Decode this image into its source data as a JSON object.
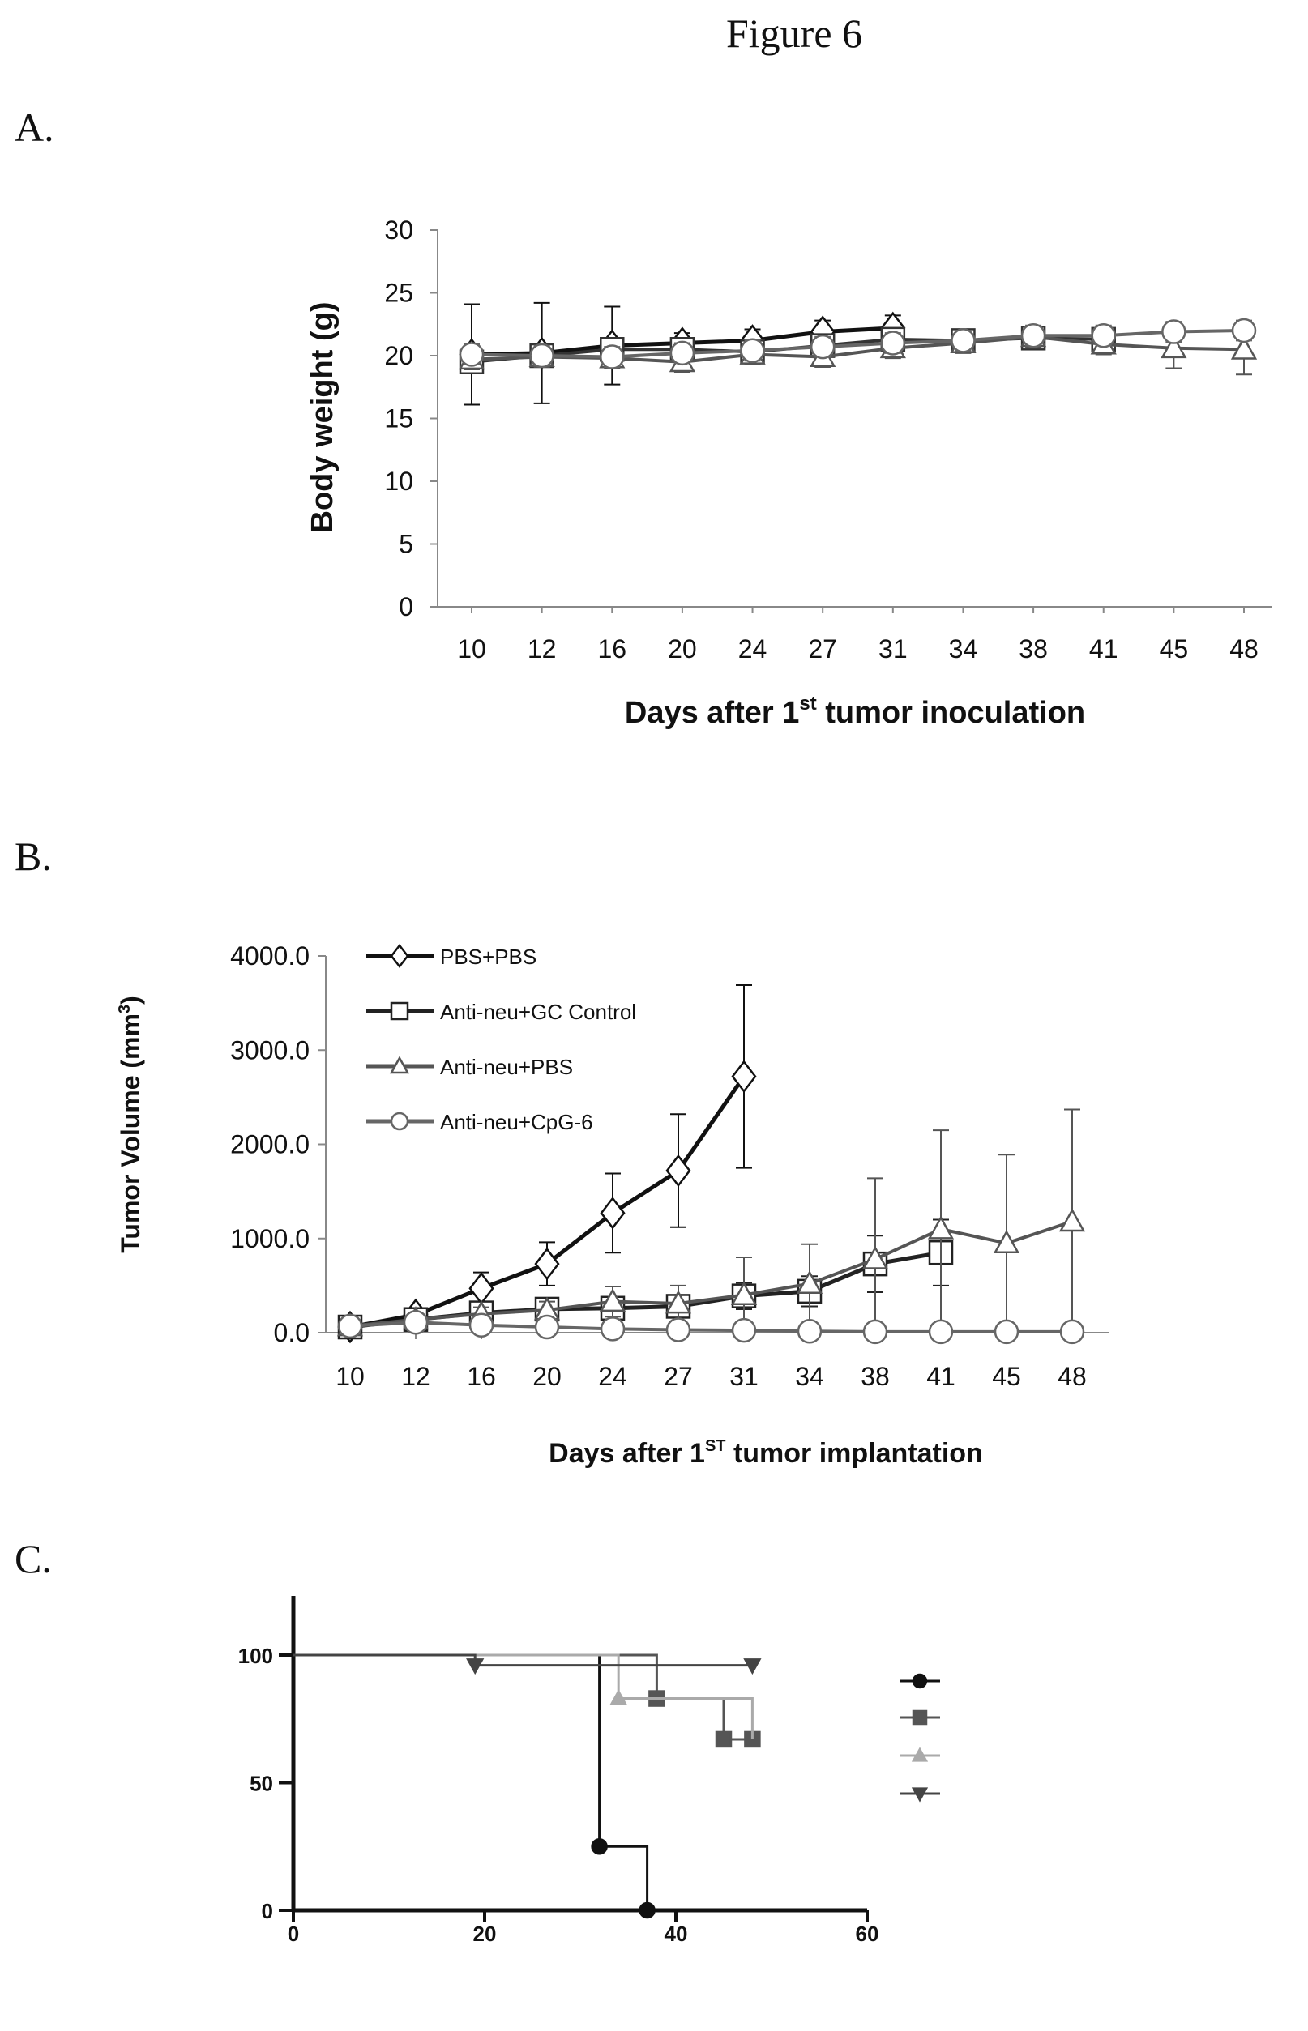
{
  "figure_title": "Figure 6",
  "panels": {
    "a_label": "A.",
    "b_label": "B.",
    "c_label": "C."
  },
  "chart_data": [
    {
      "panel": "A",
      "type": "line",
      "xlabel": "Days after 1",
      "xlabel_sup": "st",
      "xlabel_tail": " tumor inoculation",
      "ylabel": "Body weight (g)",
      "categories": [
        "10",
        "12",
        "16",
        "20",
        "24",
        "27",
        "31",
        "34",
        "38",
        "41",
        "45",
        "48"
      ],
      "yticks": [
        0,
        5,
        10,
        15,
        20,
        25,
        30
      ],
      "ylim": [
        0,
        30
      ],
      "grid": false,
      "series": [
        {
          "values": [
            20.1,
            20.2,
            20.8,
            21.0,
            21.2,
            21.9,
            22.2,
            null,
            null,
            null,
            null,
            null
          ],
          "err": [
            4.0,
            4.0,
            3.1,
            0.8,
            0.9,
            0.9,
            1.0,
            null,
            null,
            null,
            null,
            null
          ],
          "marker": "diamond",
          "color": "#111111"
        },
        {
          "values": [
            19.5,
            20.0,
            20.5,
            20.5,
            20.3,
            20.8,
            21.3,
            21.2,
            21.4,
            21.3,
            null,
            null
          ],
          "err": [
            0.8,
            0.8,
            0.9,
            0.8,
            0.8,
            0.9,
            0.9,
            0.8,
            0.8,
            0.8,
            null,
            null
          ],
          "marker": "square",
          "color": "#333333"
        },
        {
          "values": [
            19.7,
            19.9,
            19.8,
            19.5,
            20.1,
            19.9,
            20.6,
            21.0,
            21.5,
            20.9,
            20.6,
            20.5
          ],
          "err": [
            0.8,
            0.8,
            0.8,
            0.8,
            0.8,
            0.8,
            0.8,
            0.8,
            0.8,
            0.8,
            1.6,
            2.0
          ],
          "marker": "triangle",
          "color": "#555555"
        },
        {
          "values": [
            20.1,
            20.0,
            19.9,
            20.2,
            20.4,
            20.7,
            21.0,
            21.2,
            21.6,
            21.6,
            21.9,
            22.0
          ],
          "err": [
            0.8,
            0.8,
            0.8,
            0.8,
            0.8,
            0.8,
            0.8,
            0.8,
            0.8,
            0.8,
            0.8,
            0.8
          ],
          "marker": "circle",
          "color": "#666666"
        }
      ]
    },
    {
      "panel": "B",
      "type": "line",
      "xlabel": "Days after 1",
      "xlabel_sup": "ST",
      "xlabel_tail": "  tumor implantation",
      "ylabel": "Tumor Volume (mm",
      "ylabel_sup": "3",
      "ylabel_tail": ")",
      "categories": [
        "10",
        "12",
        "16",
        "20",
        "24",
        "27",
        "31",
        "34",
        "38",
        "41",
        "45",
        "48"
      ],
      "yticks": [
        "0.0",
        "1000.0",
        "2000.0",
        "3000.0",
        "4000.0"
      ],
      "ylim": [
        0,
        4000
      ],
      "grid": false,
      "legend_position": "top-left",
      "series": [
        {
          "name": "PBS+PBS",
          "values": [
            60,
            190,
            470,
            730,
            1270,
            1720,
            2720,
            null,
            null,
            null,
            null,
            null
          ],
          "err": [
            30,
            50,
            170,
            230,
            420,
            600,
            970,
            null,
            null,
            null,
            null,
            null
          ],
          "marker": "diamond",
          "color": "#111111"
        },
        {
          "name": "Anti-neu+GC Control",
          "values": [
            60,
            140,
            210,
            250,
            260,
            280,
            390,
            440,
            730,
            850,
            null,
            null
          ],
          "err": [
            30,
            40,
            80,
            90,
            100,
            110,
            140,
            160,
            300,
            350,
            null,
            null
          ],
          "marker": "square",
          "color": "#222222"
        },
        {
          "name": "Anti-neu+PBS",
          "values": [
            70,
            140,
            200,
            240,
            330,
            310,
            400,
            520,
            780,
            1100,
            950,
            1180
          ],
          "err": [
            30,
            40,
            70,
            90,
            160,
            190,
            400,
            420,
            860,
            1050,
            940,
            1190
          ],
          "marker": "triangle",
          "color": "#555555"
        },
        {
          "name": "Anti-neu+CpG-6",
          "values": [
            70,
            110,
            80,
            60,
            40,
            30,
            25,
            15,
            10,
            10,
            10,
            10
          ],
          "err": [
            20,
            20,
            20,
            20,
            15,
            10,
            10,
            8,
            5,
            5,
            5,
            5
          ],
          "marker": "circle",
          "color": "#666666"
        }
      ]
    },
    {
      "panel": "C",
      "type": "line",
      "xticks": [
        "0",
        "20",
        "40",
        "60"
      ],
      "yticks": [
        "0",
        "50",
        "100"
      ],
      "xlim": [
        0,
        60
      ],
      "ylim": [
        0,
        100
      ],
      "grid": false,
      "legend_position": "right",
      "series": [
        {
          "steps": [
            [
              0,
              100
            ],
            [
              32,
              100
            ],
            [
              32,
              25
            ],
            [
              37,
              25
            ],
            [
              37,
              0
            ]
          ],
          "points": [
            [
              32,
              25
            ],
            [
              37,
              0
            ]
          ],
          "marker": "circle",
          "color": "#111111"
        },
        {
          "steps": [
            [
              0,
              100
            ],
            [
              38,
              100
            ],
            [
              38,
              83
            ],
            [
              45,
              83
            ],
            [
              45,
              67
            ],
            [
              48,
              67
            ]
          ],
          "points": [
            [
              38,
              83
            ],
            [
              45,
              67
            ],
            [
              48,
              67
            ]
          ],
          "marker": "square",
          "color": "#555555"
        },
        {
          "steps": [
            [
              0,
              100
            ],
            [
              34,
              100
            ],
            [
              34,
              83
            ],
            [
              48,
              83
            ],
            [
              48,
              67
            ]
          ],
          "points": [
            [
              34,
              83
            ]
          ],
          "marker": "triangle",
          "color": "#aaaaaa"
        },
        {
          "steps": [
            [
              0,
              100
            ],
            [
              19,
              100
            ],
            [
              19,
              96
            ],
            [
              48,
              96
            ]
          ],
          "points": [
            [
              19,
              96
            ],
            [
              48,
              96
            ]
          ],
          "marker": "triangle-down",
          "color": "#444444"
        }
      ]
    }
  ]
}
